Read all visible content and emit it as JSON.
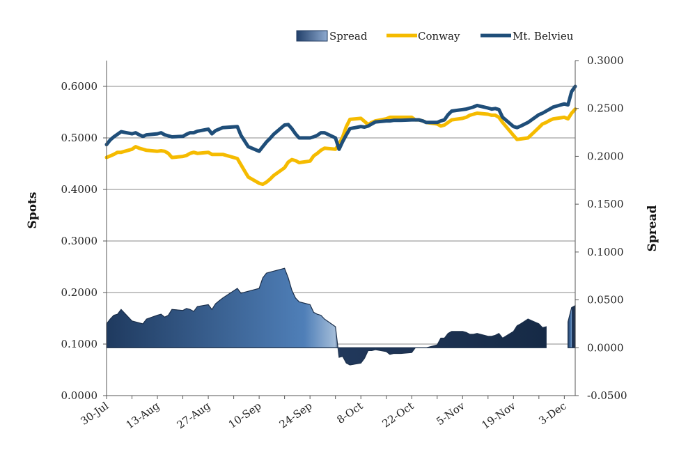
{
  "chart_data": {
    "type": "line",
    "title": "",
    "y_left_label": "Spots",
    "y_right_label": "Spread",
    "y_left_range": [
      0,
      0.65
    ],
    "y_right_range": [
      -0.05,
      0.3
    ],
    "y_left_ticks": [
      "0.0000",
      "0.1000",
      "0.2000",
      "0.3000",
      "0.4000",
      "0.5000",
      "0.6000"
    ],
    "y_right_ticks": [
      "-0.0500",
      "0.0000",
      "0.0500",
      "0.1000",
      "0.1500",
      "0.2000",
      "0.2500",
      "0.3000"
    ],
    "x_range": [
      "2012-07-30",
      "2012-12-06"
    ],
    "x_ticks": [
      "30-Jul",
      "13-Aug",
      "27-Aug",
      "10-Sep",
      "24-Sep",
      "8-Oct",
      "22-Oct",
      "5-Nov",
      "19-Nov",
      "3-Dec"
    ],
    "grid": "horizontal",
    "legend_position": "top-right",
    "legend": [
      "Spread",
      "Conway",
      "Mt. Belvieu"
    ],
    "colors": {
      "spread_dark": "#1f3a5f",
      "spread_light": "#8eaad0",
      "conway": "#f5bb00",
      "belvieu": "#1f4e79"
    },
    "x_dates": [
      "2012-07-30",
      "2012-07-31",
      "2012-08-01",
      "2012-08-02",
      "2012-08-03",
      "2012-08-06",
      "2012-08-07",
      "2012-08-08",
      "2012-08-09",
      "2012-08-10",
      "2012-08-13",
      "2012-08-14",
      "2012-08-15",
      "2012-08-16",
      "2012-08-17",
      "2012-08-20",
      "2012-08-21",
      "2012-08-22",
      "2012-08-23",
      "2012-08-24",
      "2012-08-27",
      "2012-08-28",
      "2012-08-29",
      "2012-08-30",
      "2012-08-31",
      "2012-09-04",
      "2012-09-05",
      "2012-09-06",
      "2012-09-07",
      "2012-09-10",
      "2012-09-11",
      "2012-09-12",
      "2012-09-13",
      "2012-09-14",
      "2012-09-17",
      "2012-09-18",
      "2012-09-19",
      "2012-09-20",
      "2012-09-21",
      "2012-09-24",
      "2012-09-25",
      "2012-09-26",
      "2012-09-27",
      "2012-09-28",
      "2012-10-01",
      "2012-10-02",
      "2012-10-03",
      "2012-10-04",
      "2012-10-05",
      "2012-10-08",
      "2012-10-09",
      "2012-10-10",
      "2012-10-11",
      "2012-10-12",
      "2012-10-15",
      "2012-10-16",
      "2012-10-17",
      "2012-10-18",
      "2012-10-19",
      "2012-10-22",
      "2012-10-23",
      "2012-10-24",
      "2012-10-25",
      "2012-10-26",
      "2012-10-29",
      "2012-10-30",
      "2012-10-31",
      "2012-11-01",
      "2012-11-02",
      "2012-11-05",
      "2012-11-06",
      "2012-11-07",
      "2012-11-08",
      "2012-11-09",
      "2012-11-12",
      "2012-11-13",
      "2012-11-14",
      "2012-11-15",
      "2012-11-16",
      "2012-11-19",
      "2012-11-20",
      "2012-11-21",
      "2012-11-23",
      "2012-11-26",
      "2012-11-27",
      "2012-11-28",
      "2012-11-29",
      "2012-11-30",
      "2012-12-03",
      "2012-12-04",
      "2012-12-05",
      "2012-12-06"
    ],
    "series": [
      {
        "name": "Conway",
        "values": [
          0.462,
          0.465,
          0.468,
          0.472,
          0.472,
          0.478,
          0.483,
          0.48,
          0.478,
          0.476,
          0.474,
          0.475,
          0.474,
          0.47,
          0.462,
          0.464,
          0.466,
          0.47,
          0.472,
          0.47,
          0.472,
          0.468,
          0.468,
          0.468,
          0.468,
          0.46,
          0.448,
          0.436,
          0.424,
          0.412,
          0.41,
          0.414,
          0.42,
          0.427,
          0.442,
          0.453,
          0.458,
          0.456,
          0.452,
          0.455,
          0.465,
          0.47,
          0.476,
          0.48,
          0.478,
          0.488,
          0.502,
          0.522,
          0.536,
          0.538,
          0.532,
          0.526,
          0.53,
          0.533,
          0.537,
          0.54,
          0.54,
          0.54,
          0.54,
          0.54,
          0.535,
          0.535,
          0.533,
          0.53,
          0.527,
          0.523,
          0.525,
          0.53,
          0.535,
          0.538,
          0.54,
          0.544,
          0.546,
          0.548,
          0.546,
          0.544,
          0.544,
          0.54,
          0.53,
          0.505,
          0.497,
          0.498,
          0.5,
          0.52,
          0.527,
          0.53,
          0.534,
          0.537,
          0.54,
          0.537,
          0.548,
          0.556
        ]
      },
      {
        "name": "Mt. Belvieu",
        "values": [
          0.487,
          0.496,
          0.502,
          0.507,
          0.512,
          0.508,
          0.51,
          0.506,
          0.503,
          0.506,
          0.508,
          0.51,
          0.506,
          0.504,
          0.502,
          0.503,
          0.507,
          0.51,
          0.51,
          0.513,
          0.517,
          0.508,
          0.514,
          0.517,
          0.52,
          0.522,
          0.505,
          0.494,
          0.483,
          0.474,
          0.483,
          0.492,
          0.499,
          0.507,
          0.525,
          0.526,
          0.518,
          0.508,
          0.5,
          0.5,
          0.502,
          0.505,
          0.51,
          0.51,
          0.5,
          0.478,
          0.493,
          0.506,
          0.518,
          0.522,
          0.521,
          0.523,
          0.527,
          0.531,
          0.533,
          0.533,
          0.534,
          0.534,
          0.534,
          0.535,
          0.535,
          0.535,
          0.533,
          0.53,
          0.53,
          0.533,
          0.535,
          0.545,
          0.552,
          0.555,
          0.556,
          0.558,
          0.56,
          0.563,
          0.558,
          0.556,
          0.557,
          0.555,
          0.54,
          0.522,
          0.52,
          0.523,
          0.53,
          0.545,
          0.548,
          0.552,
          0.556,
          0.56,
          0.566,
          0.564,
          0.59,
          0.6
        ]
      },
      {
        "name": "Spread",
        "values": [
          0.025,
          0.03,
          0.034,
          0.035,
          0.04,
          0.028,
          0.027,
          0.026,
          0.025,
          0.03,
          0.034,
          0.035,
          0.032,
          0.034,
          0.04,
          0.039,
          0.041,
          0.04,
          0.038,
          0.043,
          0.045,
          0.04,
          0.046,
          0.049,
          0.052,
          0.062,
          0.057,
          0.058,
          0.059,
          0.062,
          0.073,
          0.078,
          0.079,
          0.08,
          0.083,
          0.073,
          0.06,
          0.052,
          0.048,
          0.045,
          0.037,
          0.035,
          0.034,
          0.03,
          0.022,
          -0.01,
          -0.009,
          -0.016,
          -0.018,
          -0.016,
          -0.011,
          -0.003,
          -0.003,
          -0.002,
          -0.004,
          -0.007,
          -0.006,
          -0.006,
          -0.006,
          -0.005,
          0.0,
          0.0,
          0.0,
          0.0,
          0.003,
          0.01,
          0.01,
          0.015,
          0.017,
          0.017,
          0.016,
          0.014,
          0.014,
          0.015,
          0.012,
          0.012,
          0.013,
          0.015,
          0.01,
          0.017,
          0.023,
          0.025,
          0.03,
          0.025,
          0.021,
          0.022,
          0.022,
          0.023,
          0.026,
          0.027,
          0.042,
          0.044
        ],
        "gaps": [
          "2012-11-29",
          "2012-11-30",
          "2012-12-03"
        ]
      }
    ]
  }
}
